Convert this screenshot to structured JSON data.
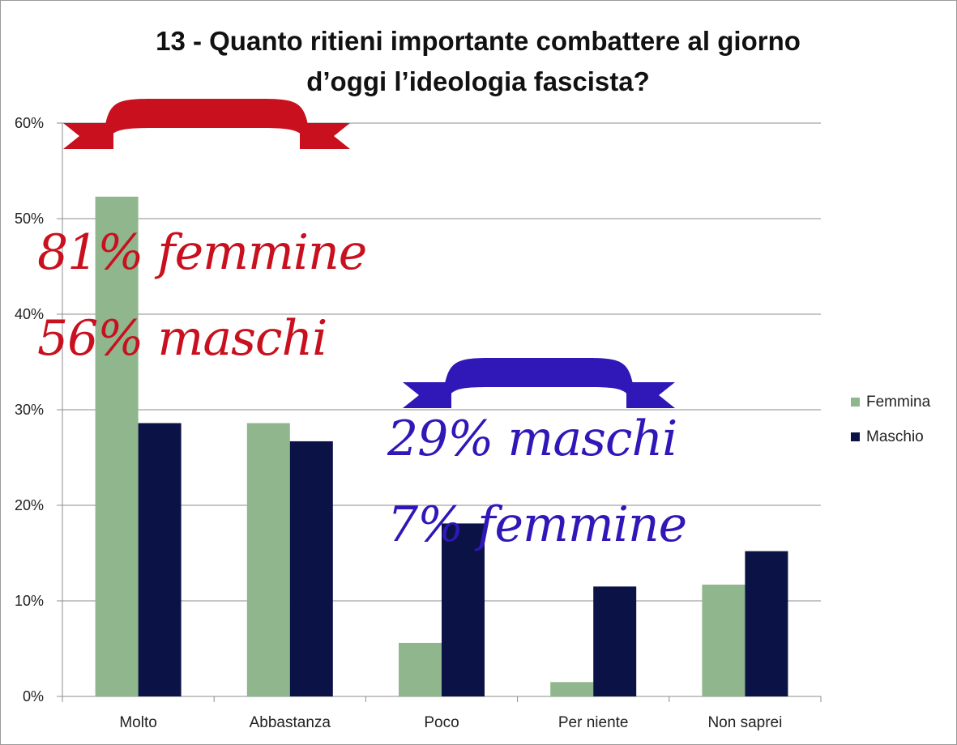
{
  "chart_data": {
    "type": "bar",
    "title": [
      "13 - Quanto ritieni importante combattere al giorno",
      "d’oggi l’ideologia fascista?"
    ],
    "categories": [
      "Molto",
      "Abbastanza",
      "Poco",
      "Per niente",
      "Non saprei"
    ],
    "series": [
      {
        "name": "Femmina",
        "color": "#8fb68c",
        "values": [
          52.3,
          28.6,
          5.6,
          1.5,
          11.7
        ]
      },
      {
        "name": "Maschio",
        "color": "#0b1245",
        "values": [
          28.6,
          26.7,
          18.1,
          11.5,
          15.2
        ]
      }
    ],
    "ylim": [
      0,
      60
    ],
    "yticks": [
      "0%",
      "10%",
      "20%",
      "30%",
      "40%",
      "50%",
      "60%"
    ],
    "grid": true,
    "legend": "right",
    "annotations": {
      "red": [
        "81% femmine",
        "56% maschi"
      ],
      "blue": [
        "29% maschi",
        "7% femmine"
      ],
      "red_color": "#c8101e",
      "blue_color": "#2f17b8"
    }
  }
}
